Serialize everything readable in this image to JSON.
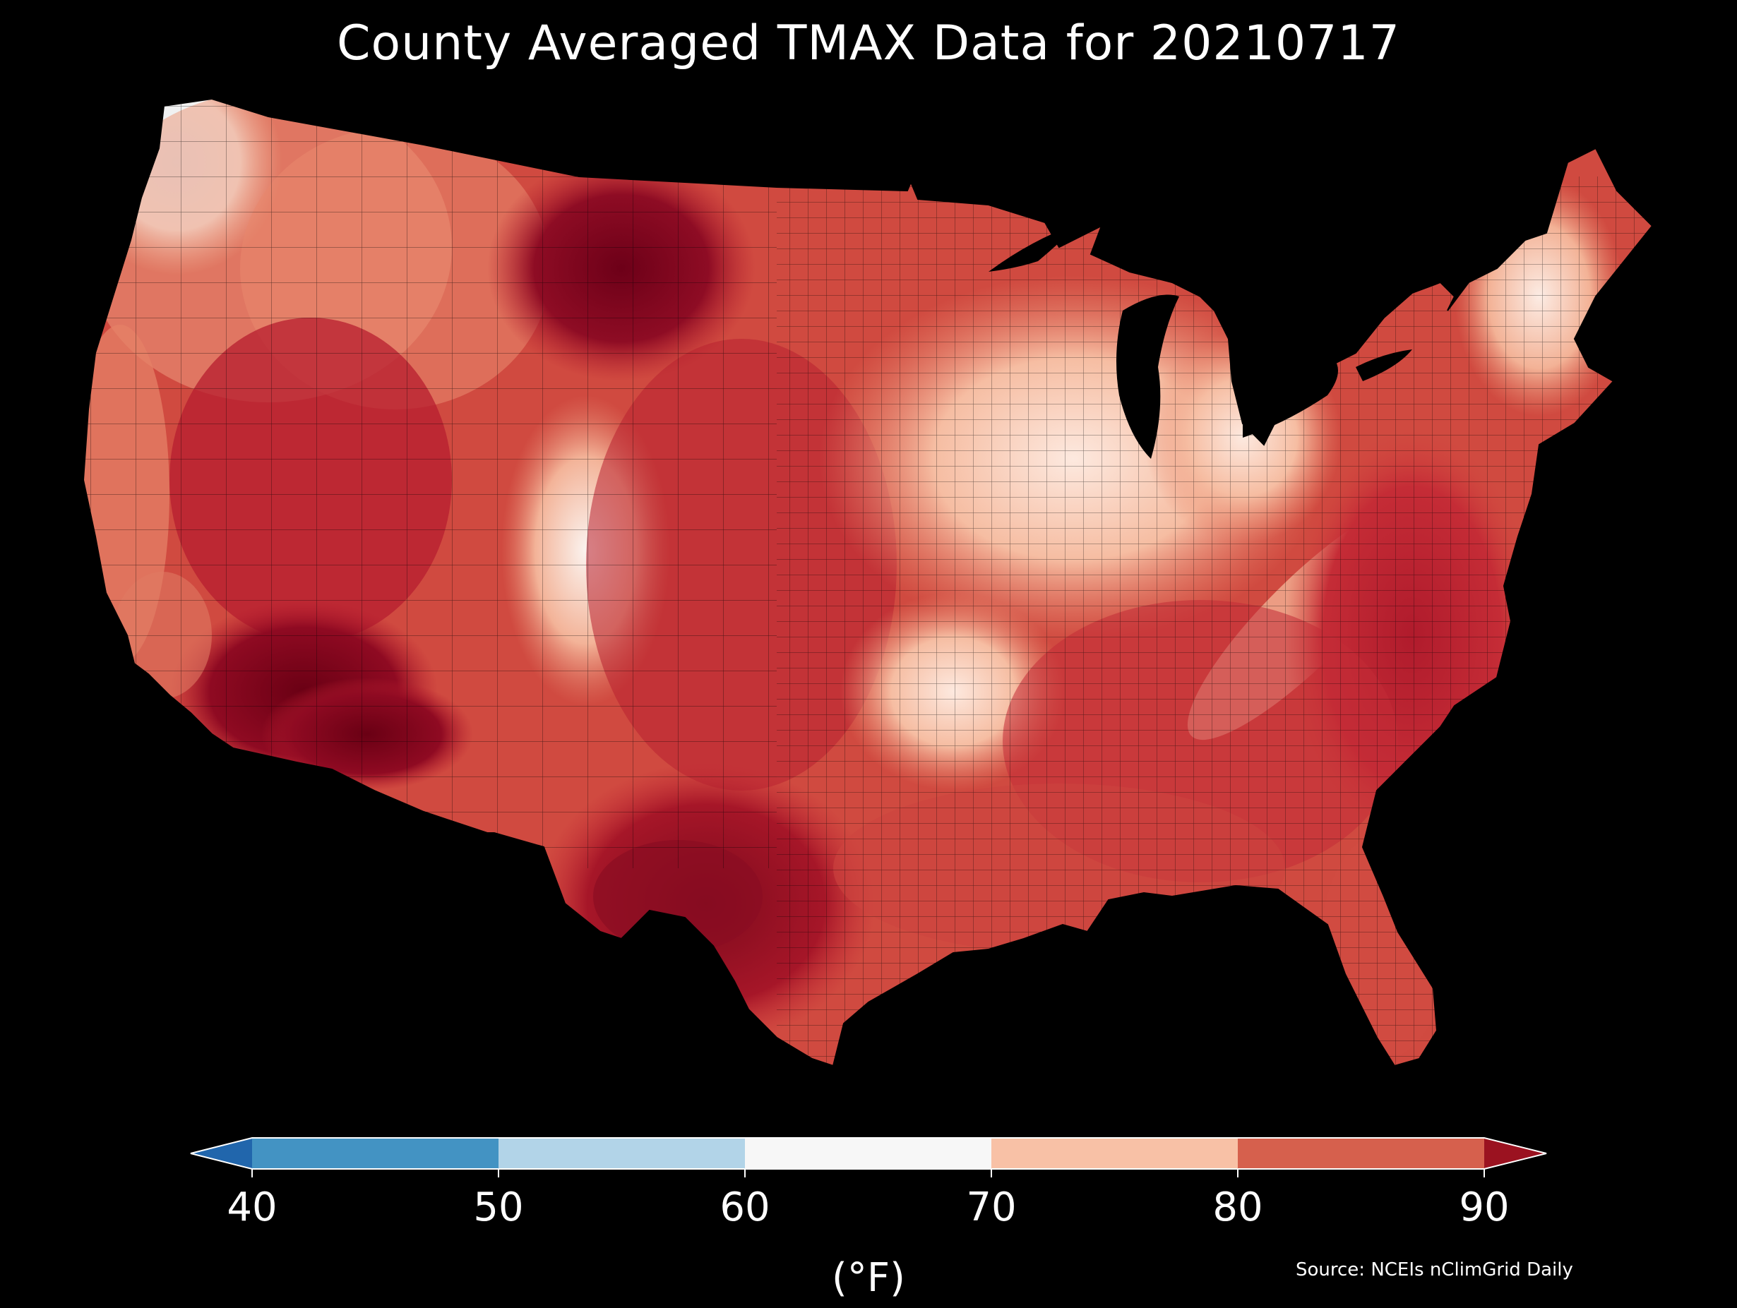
{
  "title": "County Averaged TMAX Data for 20210717",
  "legend": {
    "ticks": [
      "40",
      "50",
      "60",
      "70",
      "80",
      "90"
    ],
    "unit": "(°F)",
    "colors": {
      "under": "#2166ac",
      "b40_50": "#4393c3",
      "b50_60": "#b2d4e8",
      "b60_70": "#f7f7f7",
      "b70_80": "#f8c1a6",
      "b80_90": "#d6604d",
      "over": "#9b1220"
    }
  },
  "source": "Source: NCEIs nClimGrid Daily",
  "map": {
    "region": "Contiguous United States",
    "background": "#000000",
    "county_border": "#000000",
    "fill_scale": [
      "#eaf3fa",
      "#fbe7de",
      "#f5b79c",
      "#e58367",
      "#d65043",
      "#c22a35",
      "#a3142a",
      "#6f0016"
    ]
  }
}
